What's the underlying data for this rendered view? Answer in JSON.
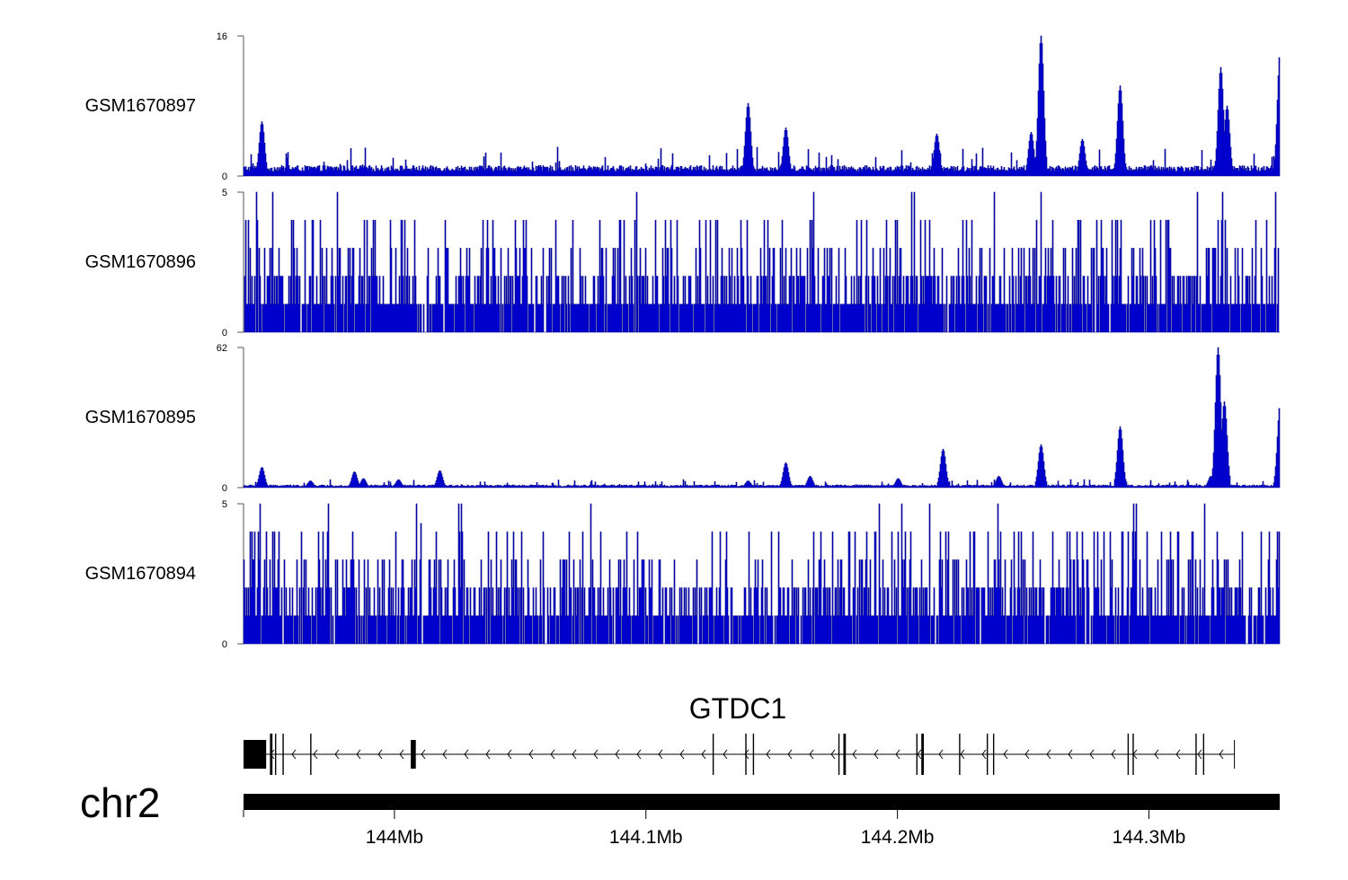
{
  "chart_data": {
    "type": "area",
    "title": "",
    "chromosome": "chr2",
    "x_range_mb": [
      143.94,
      144.352
    ],
    "x_ticks": [
      {
        "value": 144.0,
        "label": "144Mb"
      },
      {
        "value": 144.1,
        "label": "144.1Mb"
      },
      {
        "value": 144.2,
        "label": "144.2Mb"
      },
      {
        "value": 144.3,
        "label": "144.3Mb"
      }
    ],
    "gene": {
      "name": "GTDC1",
      "strand": "-",
      "start_mb": 143.94,
      "end_mb": 144.334,
      "exons_mb": [
        [
          143.94,
          143.949
        ],
        [
          143.9505,
          143.9515
        ],
        [
          143.9525,
          143.953
        ],
        [
          143.9555,
          143.956
        ],
        [
          143.9665,
          143.967
        ],
        [
          144.0065,
          144.0085
        ],
        [
          144.1265,
          144.127
        ],
        [
          144.1395,
          144.14
        ],
        [
          144.1425,
          144.143
        ],
        [
          144.1765,
          144.177
        ],
        [
          144.1785,
          144.1795
        ],
        [
          144.2075,
          144.208
        ],
        [
          144.2095,
          144.2105
        ],
        [
          144.2245,
          144.225
        ],
        [
          144.2355,
          144.236
        ],
        [
          144.238,
          144.2385
        ],
        [
          144.2915,
          144.292
        ],
        [
          144.2935,
          144.294
        ],
        [
          144.3185,
          144.319
        ],
        [
          144.3215,
          144.322
        ]
      ]
    },
    "series": [
      {
        "name": "GSM1670897",
        "ylim": [
          0,
          16
        ],
        "y_ticks": [
          "0",
          "16"
        ],
        "baseline": 0.5,
        "noise": 0.7,
        "peaks": [
          {
            "x": 143.947,
            "h": 6.2
          },
          {
            "x": 144.1403,
            "h": 8.3
          },
          {
            "x": 144.1555,
            "h": 5.5
          },
          {
            "x": 144.2155,
            "h": 4.8
          },
          {
            "x": 144.253,
            "h": 5.0
          },
          {
            "x": 144.257,
            "h": 16.0
          },
          {
            "x": 144.2735,
            "h": 4.2
          },
          {
            "x": 144.2885,
            "h": 10.3
          },
          {
            "x": 144.3285,
            "h": 12.4
          },
          {
            "x": 144.331,
            "h": 8.0
          },
          {
            "x": 144.352,
            "h": 14.3
          }
        ]
      },
      {
        "name": "GSM1670896",
        "ylim": [
          0,
          5
        ],
        "y_ticks": [
          "0",
          "5"
        ],
        "baseline": 1.0,
        "noise": 1.7,
        "peaks": [
          {
            "x": 144.257,
            "h": 5.0
          },
          {
            "x": 144.329,
            "h": 5.0
          }
        ]
      },
      {
        "name": "GSM1670895",
        "ylim": [
          0,
          62
        ],
        "y_ticks": [
          "0",
          "62"
        ],
        "baseline": 0.4,
        "noise": 0.8,
        "peaks": [
          {
            "x": 143.947,
            "h": 9.0
          },
          {
            "x": 143.9665,
            "h": 3.0
          },
          {
            "x": 143.984,
            "h": 7.0
          },
          {
            "x": 143.9875,
            "h": 4.0
          },
          {
            "x": 144.0015,
            "h": 3.5
          },
          {
            "x": 144.018,
            "h": 7.5
          },
          {
            "x": 144.1405,
            "h": 3.0
          },
          {
            "x": 144.1555,
            "h": 11.0
          },
          {
            "x": 144.165,
            "h": 5.0
          },
          {
            "x": 144.2,
            "h": 4.0
          },
          {
            "x": 144.218,
            "h": 17.0
          },
          {
            "x": 144.24,
            "h": 5.0
          },
          {
            "x": 144.257,
            "h": 19.0
          },
          {
            "x": 144.2885,
            "h": 27.0
          },
          {
            "x": 144.3245,
            "h": 5.0
          },
          {
            "x": 144.3275,
            "h": 62.0
          },
          {
            "x": 144.33,
            "h": 38.0
          },
          {
            "x": 144.352,
            "h": 37.0
          }
        ]
      },
      {
        "name": "GSM1670894",
        "ylim": [
          0,
          5
        ],
        "y_ticks": [
          "0",
          "5"
        ],
        "baseline": 1.0,
        "noise": 1.8,
        "peaks": [
          {
            "x": 144.0105,
            "h": 4.3
          },
          {
            "x": 144.078,
            "h": 5.0
          },
          {
            "x": 144.2125,
            "h": 5.0
          },
          {
            "x": 144.295,
            "h": 5.0
          }
        ]
      }
    ]
  }
}
